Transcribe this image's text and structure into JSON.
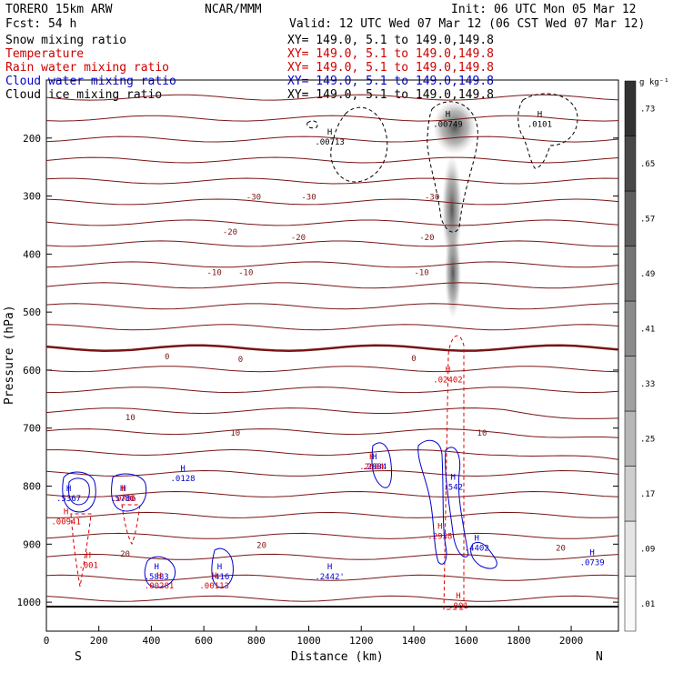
{
  "header": {
    "model": "TORERO  15km ARW",
    "center": "NCAR/MMM",
    "init": "Init: 06 UTC Mon 05 Mar 12",
    "fcst": "Fcst:   54 h",
    "valid": "Valid: 12 UTC Wed 07 Mar 12 (06 CST Wed 07 Mar 12)"
  },
  "legend": [
    {
      "label": "Snow mixing ratio",
      "xy": "XY= 149.0,  5.1 to 149.0,149.8",
      "color": "#000000"
    },
    {
      "label": "Temperature",
      "xy": "XY= 149.0,  5.1 to 149.0,149.8",
      "color": "#cc0000"
    },
    {
      "label": "Rain water mixing ratio",
      "xy": "XY= 149.0,  5.1 to 149.0,149.8",
      "color": "#cc0000"
    },
    {
      "label": "Cloud water mixing ratio",
      "xy": "XY= 149.0,  5.1 to 149.0,149.8",
      "color": "#0000cc"
    },
    {
      "label": "Cloud ice mixing ratio",
      "xy": "XY= 149.0,  5.1 to 149.0,149.8",
      "color": "#000000"
    }
  ],
  "colors": {
    "temperature": "#7a1414",
    "rain": "#dd0000",
    "cloud_water": "#0000cc",
    "ice": "#000000"
  },
  "chart_data": {
    "type": "contour-cross-section",
    "xlabel": "Distance (km)",
    "ylabel": "Pressure (hPa)",
    "xlim": [
      0,
      2180
    ],
    "ylim": [
      1050,
      100
    ],
    "x_ticks": [
      "0",
      "200",
      "400",
      "600",
      "800",
      "1000",
      "1200",
      "1400",
      "1600",
      "1800",
      "2000"
    ],
    "x_tick_values": [
      0,
      200,
      400,
      600,
      800,
      1000,
      1200,
      1400,
      1600,
      1800,
      2000
    ],
    "y_ticks": [
      "200",
      "300",
      "400",
      "500",
      "600",
      "700",
      "800",
      "900",
      "1000"
    ],
    "y_tick_values": [
      200,
      300,
      400,
      500,
      600,
      700,
      800,
      900,
      1000
    ],
    "end_labels": {
      "left": "S",
      "right": "N"
    },
    "colorbar": {
      "unit": "g kg⁻¹",
      "labels": [
        ".01",
        ".09",
        ".17",
        ".25",
        ".33",
        ".41",
        ".49",
        ".57",
        ".65",
        ".73"
      ],
      "values": [
        0.01,
        0.09,
        0.17,
        0.25,
        0.33,
        0.41,
        0.49,
        0.57,
        0.65,
        0.73
      ]
    },
    "temperature_labels": [
      {
        "text": "-30",
        "x": 790,
        "p": 300
      },
      {
        "text": "-30",
        "x": 1000,
        "p": 300
      },
      {
        "text": "-30",
        "x": 1470,
        "p": 300
      },
      {
        "text": "-20",
        "x": 700,
        "p": 360
      },
      {
        "text": "-20",
        "x": 960,
        "p": 370
      },
      {
        "text": "-20",
        "x": 1450,
        "p": 370
      },
      {
        "text": "-10",
        "x": 640,
        "p": 430
      },
      {
        "text": "-10",
        "x": 760,
        "p": 430
      },
      {
        "text": "-10",
        "x": 1430,
        "p": 430
      },
      {
        "text": "0",
        "x": 460,
        "p": 575
      },
      {
        "text": "0",
        "x": 740,
        "p": 580
      },
      {
        "text": "0",
        "x": 1400,
        "p": 578
      },
      {
        "text": "10",
        "x": 320,
        "p": 680
      },
      {
        "text": "10",
        "x": 720,
        "p": 707
      },
      {
        "text": "10",
        "x": 1660,
        "p": 707
      },
      {
        "text": "20",
        "x": 300,
        "p": 915
      },
      {
        "text": "20",
        "x": 820,
        "p": 900
      },
      {
        "text": "20",
        "x": 1960,
        "p": 905
      }
    ],
    "maxima": [
      {
        "series": "ice",
        "value": ".00713",
        "x": 1080,
        "p": 200
      },
      {
        "series": "ice",
        "value": ".00749",
        "x": 1530,
        "p": 170
      },
      {
        "series": "ice",
        "value": ".0101",
        "x": 1880,
        "p": 170
      },
      {
        "series": "rain",
        "value": ".02402",
        "x": 1530,
        "p": 610
      },
      {
        "series": "cloud",
        "value": ".0128",
        "x": 520,
        "p": 780
      },
      {
        "series": "cloud",
        "value": ".5367",
        "x": 85,
        "p": 815
      },
      {
        "series": "rain",
        "value": ".00941",
        "x": 75,
        "p": 855
      },
      {
        "series": "cloud",
        "value": ".5780",
        "x": 290,
        "p": 815
      },
      {
        "series": "rain",
        "value": ".0786",
        "x": 295,
        "p": 815
      },
      {
        "series": "cloud",
        "value": ".2884",
        "x": 1250,
        "p": 760
      },
      {
        "series": "rain",
        "value": ".2684",
        "x": 1240,
        "p": 760
      },
      {
        "series": "cloud",
        "value": ".542",
        "x": 1550,
        "p": 795
      },
      {
        "series": "rain",
        "value": ".2938",
        "x": 1500,
        "p": 880
      },
      {
        "series": "cloud",
        "value": ".4402",
        "x": 1640,
        "p": 900
      },
      {
        "series": "rain",
        "value": ".001",
        "x": 160,
        "p": 930
      },
      {
        "series": "cloud",
        "value": ".5883",
        "x": 420,
        "p": 950
      },
      {
        "series": "rain",
        "value": ".00281",
        "x": 430,
        "p": 965
      },
      {
        "series": "cloud",
        "value": ".2442'",
        "x": 1080,
        "p": 950
      },
      {
        "series": "cloud",
        "value": ".416",
        "x": 660,
        "p": 950
      },
      {
        "series": "rain",
        "value": ".00113",
        "x": 640,
        "p": 965
      },
      {
        "series": "cloud",
        "value": ".0739",
        "x": 2080,
        "p": 925
      },
      {
        "series": "rain",
        "value": ".001",
        "x": 1570,
        "p": 1000
      }
    ]
  }
}
